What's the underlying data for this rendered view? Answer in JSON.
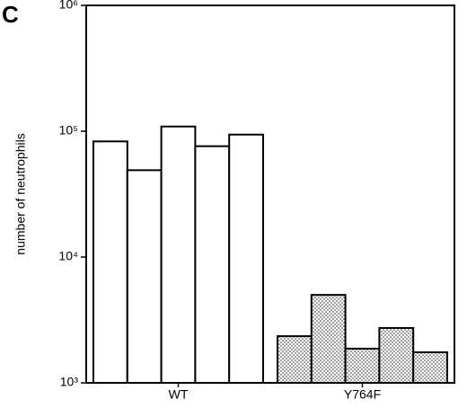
{
  "panel_label": "C",
  "chart_data": {
    "type": "bar",
    "ylabel": "number of neutrophils",
    "categories": [
      "WT",
      "Y764F"
    ],
    "values": [
      [
        83000,
        49000,
        109000,
        76000,
        94000
      ],
      [
        2350,
        5000,
        1870,
        2730,
        1750
      ]
    ],
    "patterns": [
      "none",
      "dots"
    ],
    "log_scale": true,
    "ylim": [
      1000,
      1000000
    ],
    "yticks": [
      {
        "value": 1000,
        "label": "10³"
      },
      {
        "value": 10000,
        "label": "10⁴"
      },
      {
        "value": 100000,
        "label": "10⁵"
      },
      {
        "value": 1000000,
        "label": "10⁶"
      }
    ]
  }
}
